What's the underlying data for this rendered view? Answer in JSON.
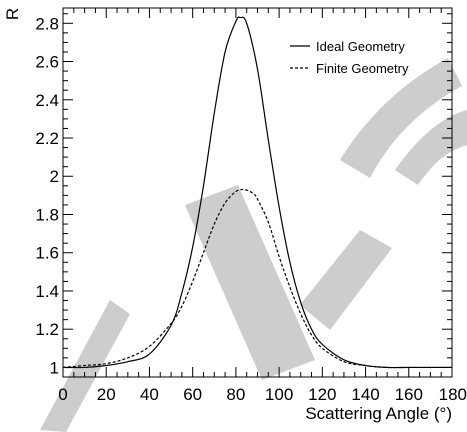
{
  "chart_data": {
    "type": "line",
    "xlabel": "Scattering Angle (°)",
    "ylabel": "R",
    "xlim": [
      0,
      180
    ],
    "ylim": [
      0.95,
      2.88
    ],
    "x_ticks": [
      "0",
      "20",
      "40",
      "60",
      "80",
      "100",
      "120",
      "140",
      "160",
      "180"
    ],
    "y_ticks": [
      "1",
      "1.2",
      "1.4",
      "1.6",
      "1.8",
      "2",
      "2.2",
      "2.4",
      "2.6",
      "2.8"
    ],
    "grid": false,
    "legend_position": "top-right",
    "series": [
      {
        "name": "Ideal Geometry",
        "style": "solid",
        "x": [
          0,
          10,
          20,
          30,
          40,
          50,
          55,
          60,
          65,
          70,
          75,
          80,
          82,
          85,
          90,
          95,
          100,
          105,
          110,
          115,
          120,
          130,
          140,
          150,
          160,
          170,
          180
        ],
        "y": [
          1.0,
          1.0,
          1.01,
          1.03,
          1.07,
          1.22,
          1.39,
          1.63,
          1.95,
          2.33,
          2.65,
          2.81,
          2.83,
          2.8,
          2.56,
          2.19,
          1.84,
          1.55,
          1.34,
          1.2,
          1.12,
          1.04,
          1.01,
          1.0,
          1.0,
          1.0,
          1.0
        ]
      },
      {
        "name": "Finite Geometry",
        "style": "dashed",
        "x": [
          0,
          10,
          20,
          30,
          40,
          50,
          55,
          60,
          65,
          70,
          75,
          80,
          84,
          88,
          90,
          95,
          100,
          105,
          110,
          115,
          120,
          130,
          140,
          150,
          160,
          170,
          180
        ],
        "y": [
          1.0,
          1.01,
          1.02,
          1.05,
          1.11,
          1.23,
          1.32,
          1.45,
          1.6,
          1.75,
          1.86,
          1.92,
          1.93,
          1.91,
          1.88,
          1.76,
          1.58,
          1.42,
          1.28,
          1.17,
          1.1,
          1.03,
          1.01,
          1.0,
          1.0,
          1.0,
          1.0
        ]
      }
    ]
  },
  "watermark": {
    "color": "#c8c8c8"
  }
}
